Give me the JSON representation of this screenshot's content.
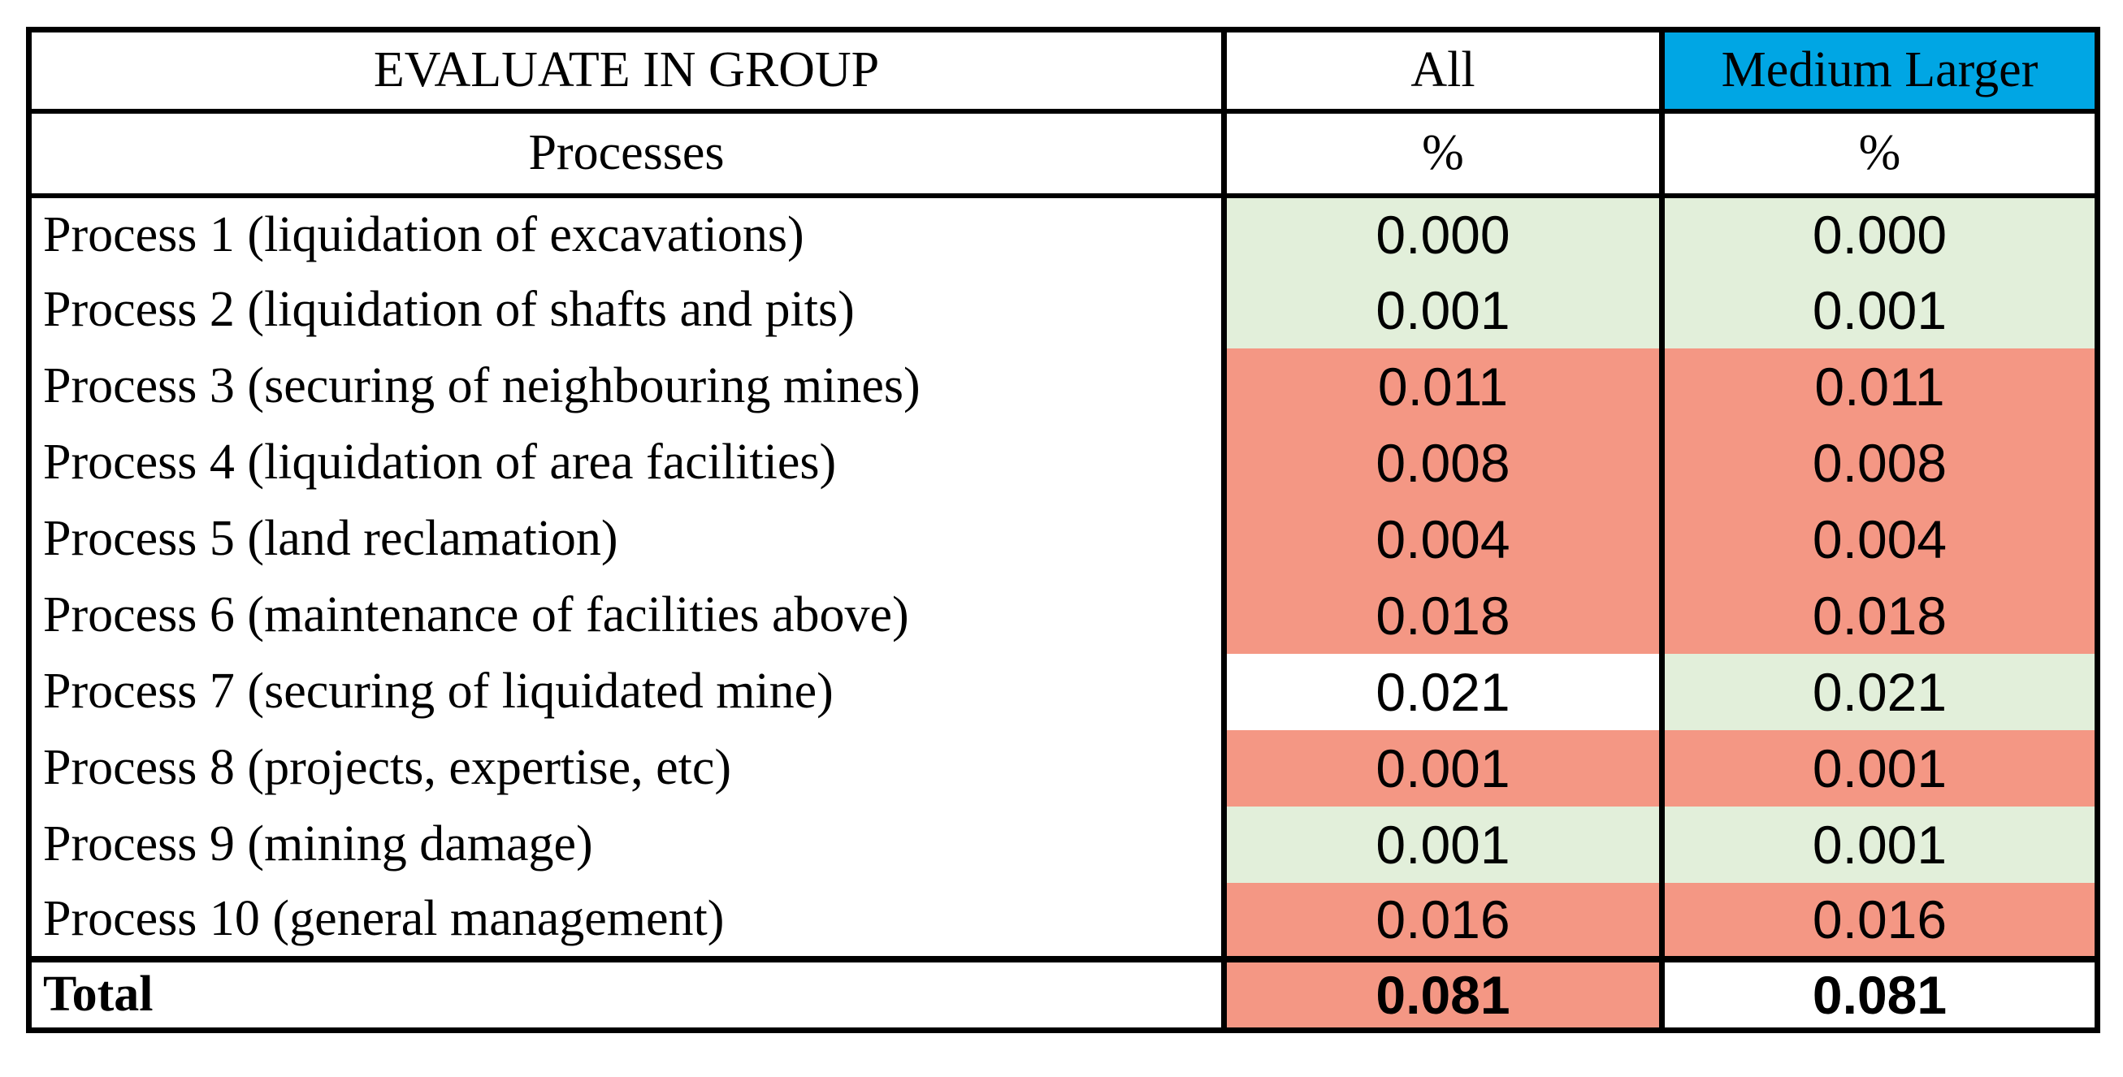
{
  "palette": {
    "header_blue": "#00A6E4",
    "good_green": "#E2EFDA",
    "flag_salmon": "#F49784",
    "plain_white": "#FFFFFF"
  },
  "table": {
    "header": {
      "group_title": "EVALUATE IN GROUP",
      "col_all": "All",
      "col_medium_larger": "Medium Larger"
    },
    "subheader": {
      "processes_label": "Processes",
      "all_unit": "%",
      "medium_larger_unit": "%"
    },
    "rows": [
      {
        "label": "Process 1 (liquidation of excavations)",
        "all": "0.000",
        "medium_larger": "0.000",
        "all_bg": "#E2EFDA",
        "medium_larger_bg": "#E2EFDA"
      },
      {
        "label": "Process 2 (liquidation of shafts and pits)",
        "all": "0.001",
        "medium_larger": "0.001",
        "all_bg": "#E2EFDA",
        "medium_larger_bg": "#E2EFDA"
      },
      {
        "label": "Process 3 (securing of neighbouring mines)",
        "all": "0.011",
        "medium_larger": "0.011",
        "all_bg": "#F49784",
        "medium_larger_bg": "#F49784"
      },
      {
        "label": "Process 4 (liquidation of area facilities)",
        "all": "0.008",
        "medium_larger": "0.008",
        "all_bg": "#F49784",
        "medium_larger_bg": "#F49784"
      },
      {
        "label": "Process 5 (land reclamation)",
        "all": "0.004",
        "medium_larger": "0.004",
        "all_bg": "#F49784",
        "medium_larger_bg": "#F49784"
      },
      {
        "label": "Process 6 (maintenance of facilities above)",
        "all": "0.018",
        "medium_larger": "0.018",
        "all_bg": "#F49784",
        "medium_larger_bg": "#F49784"
      },
      {
        "label": "Process 7 (securing of liquidated mine)",
        "all": "0.021",
        "medium_larger": "0.021",
        "all_bg": "#FFFFFF",
        "medium_larger_bg": "#E2EFDA"
      },
      {
        "label": "Process 8 (projects, expertise, etc)",
        "all": "0.001",
        "medium_larger": "0.001",
        "all_bg": "#F49784",
        "medium_larger_bg": "#F49784"
      },
      {
        "label": "Process 9 (mining damage)",
        "all": "0.001",
        "medium_larger": "0.001",
        "all_bg": "#E2EFDA",
        "medium_larger_bg": "#E2EFDA"
      },
      {
        "label": "Process 10 (general management)",
        "all": "0.016",
        "medium_larger": "0.016",
        "all_bg": "#F49784",
        "medium_larger_bg": "#F49784"
      }
    ],
    "total": {
      "label": "Total",
      "all": "0.081",
      "medium_larger": "0.081",
      "all_bg": "#F49784",
      "medium_larger_bg": "#FFFFFF"
    }
  }
}
